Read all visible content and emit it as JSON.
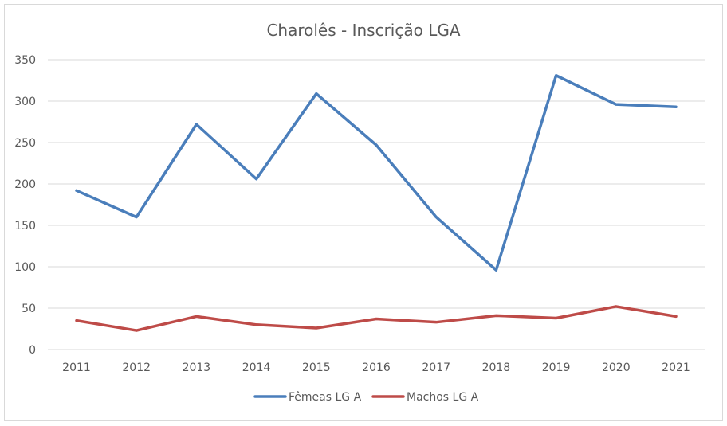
{
  "chart_data": {
    "type": "line",
    "title": "Charolês - Inscrição LGA",
    "xlabel": "",
    "ylabel": "",
    "categories": [
      "2011",
      "2012",
      "2013",
      "2014",
      "2015",
      "2016",
      "2017",
      "2018",
      "2019",
      "2020",
      "2021"
    ],
    "ylim": [
      0,
      350
    ],
    "yticks": [
      0,
      50,
      100,
      150,
      200,
      250,
      300,
      350
    ],
    "grid": true,
    "legend_position": "bottom",
    "series": [
      {
        "name": "Fêmeas LG A",
        "color": "#4a7ebb",
        "values": [
          192,
          160,
          272,
          206,
          309,
          247,
          160,
          96,
          331,
          296,
          293
        ]
      },
      {
        "name": "Machos LG A",
        "color": "#be4b48",
        "values": [
          35,
          23,
          40,
          30,
          26,
          37,
          33,
          41,
          38,
          52,
          40
        ]
      }
    ]
  }
}
